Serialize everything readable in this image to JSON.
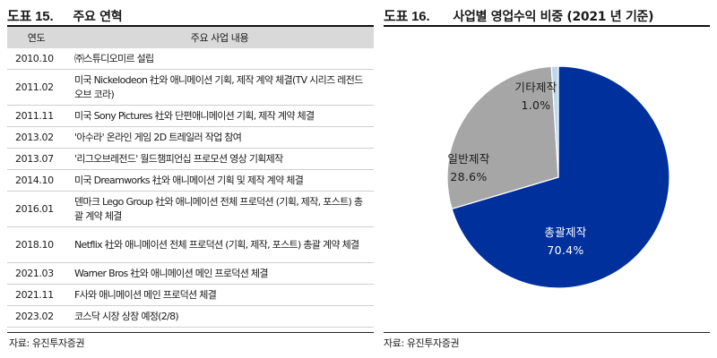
{
  "left": {
    "fig_num": "도표 15.",
    "title": "주요 연혁",
    "table": {
      "headers": [
        "연도",
        "주요 사업 내용"
      ],
      "rows": [
        {
          "date": "2010.10",
          "text": "㈜스튜디오미르 설립"
        },
        {
          "date": "2011.02",
          "text": "미국 Nickelodeon 社와 애니메이션 기획, 제작 계약 체결(TV 시리즈 레전드 오브 코라)"
        },
        {
          "date": "2011.11",
          "text": "미국 Sony Pictures 社와 단편애니메이션 기획, 제작 계약 체결"
        },
        {
          "date": "2013.02",
          "text": "'아수라' 온라인 게임 2D 트레일러 작업 참여"
        },
        {
          "date": "2013.07",
          "text": "'리그오브레전드' 월드챔피언십 프로모션 영상 기획제작"
        },
        {
          "date": "2014.10",
          "text": "미국 Dreamworks 社와 애니메이션 기획 및 제작 계약 체결"
        },
        {
          "date": "2016.01",
          "text": "덴마크 Lego Group 社와 애니메이션 전체 프로덕션 (기획, 제작, 포스트) 총괄 계약 체결"
        },
        {
          "date": "2018.10",
          "text": "Netflix 社와 애니메이션 전체 프로덕션 (기획, 제작, 포스트) 총괄 계약 체결"
        },
        {
          "date": "2021.03",
          "text": "Warner Bros 社와 애니메이션 메인 프로덕션 체결"
        },
        {
          "date": "2021.11",
          "text": "F사와 애니메이션 메인 프로덕션 체결"
        },
        {
          "date": "2023.02",
          "text": "코스닥 시장 상장 예정(2/8)"
        }
      ]
    },
    "source": "자료: 유진투자증권"
  },
  "right": {
    "fig_num": "도표 16.",
    "title": "사업별 영업수익 비중 (2021 년 기준)",
    "source": "자료: 유진투자증권"
  },
  "chart_data": {
    "type": "pie",
    "title": "사업별 영업수익 비중 (2021 년 기준)",
    "slices": [
      {
        "label": "총괄제작",
        "value": 70.4,
        "display": "70.4%",
        "color": "#00309c"
      },
      {
        "label": "일반제작",
        "value": 28.6,
        "display": "28.6%",
        "color": "#a6a6a6"
      },
      {
        "label": "기타제작",
        "value": 1.0,
        "display": "1.0%",
        "color": "#bdd7ee"
      }
    ],
    "start": "12 o'clock, clockwise",
    "legend": "none"
  }
}
